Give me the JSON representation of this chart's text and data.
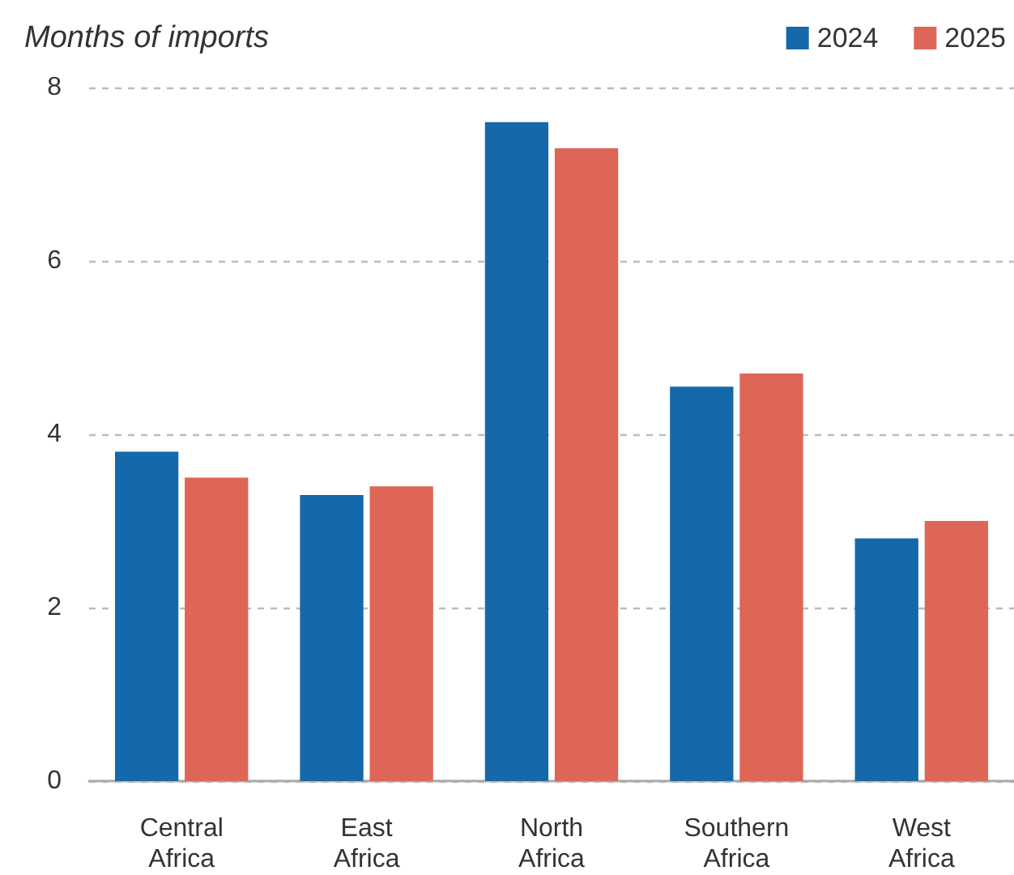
{
  "chart_data": {
    "type": "bar",
    "ylabel": "Months of imports",
    "categories": [
      "Central Africa",
      "East Africa",
      "North Africa",
      "Southern Africa",
      "West Africa"
    ],
    "series": [
      {
        "name": "2024",
        "color": "#1569aa",
        "values": [
          3.8,
          3.3,
          7.6,
          4.55,
          2.8
        ]
      },
      {
        "name": "2025",
        "color": "#dd6657",
        "values": [
          3.5,
          3.4,
          7.3,
          4.7,
          3.0
        ]
      }
    ],
    "ylim": [
      0,
      8
    ],
    "yticks": [
      0,
      2,
      4,
      6,
      8
    ],
    "grid": "y",
    "legend": "top right"
  }
}
